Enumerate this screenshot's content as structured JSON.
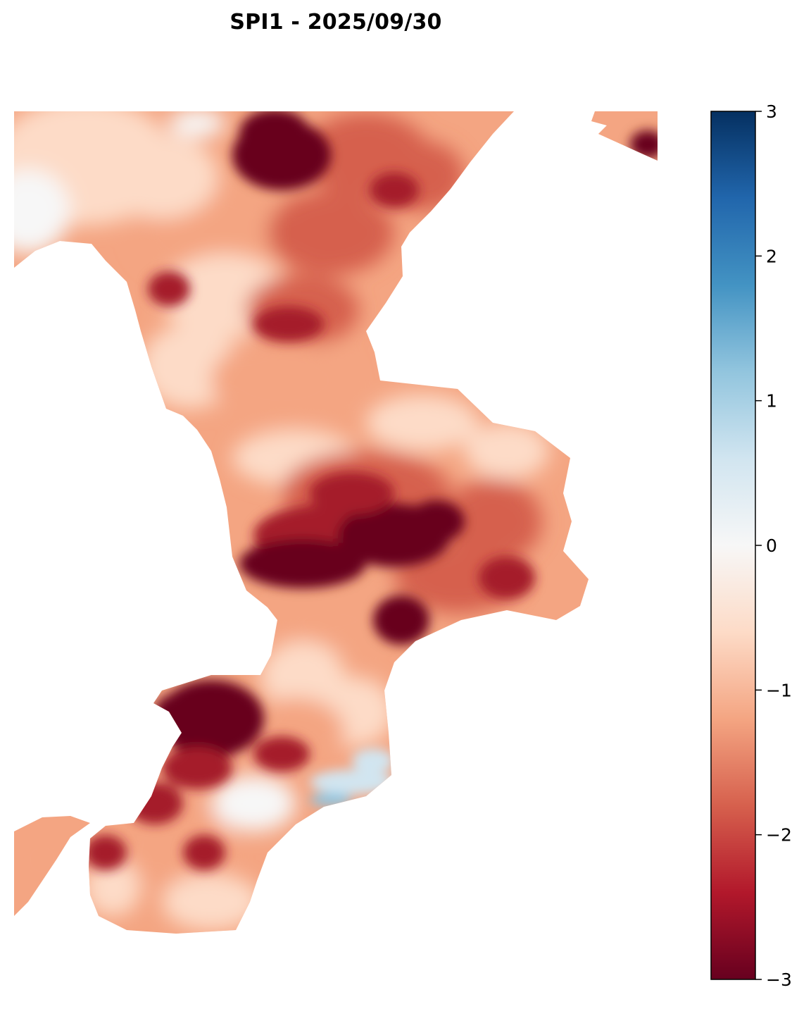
{
  "title": "SPI1 - 2025/09/30",
  "map": {
    "variable": "SPI1",
    "date": "2025/09/30",
    "colormap": "RdBu",
    "value_range": [
      -3,
      3
    ],
    "shade_colors": {
      "dark_deficit": "#67001f",
      "strong_deficit": "#a51d2c",
      "moderate_deficit": "#d6604d",
      "mild_deficit": "#f4a582",
      "slight_deficit": "#fddbc7",
      "neutral": "#f7f7f7",
      "slight_surplus": "#d1e5f0",
      "mild_surplus": "#92c5de"
    }
  },
  "colorbar": {
    "ticks": [
      "3",
      "2",
      "1",
      "0",
      "−1",
      "−2",
      "−3"
    ],
    "tick_values": [
      3,
      2,
      1,
      0,
      -1,
      -2,
      -3
    ],
    "stops": [
      "#67001f",
      "#b2182b",
      "#d6604d",
      "#f4a582",
      "#fddbc7",
      "#f7f7f7",
      "#d1e5f0",
      "#92c5de",
      "#4393c3",
      "#2166ac",
      "#053061"
    ]
  }
}
